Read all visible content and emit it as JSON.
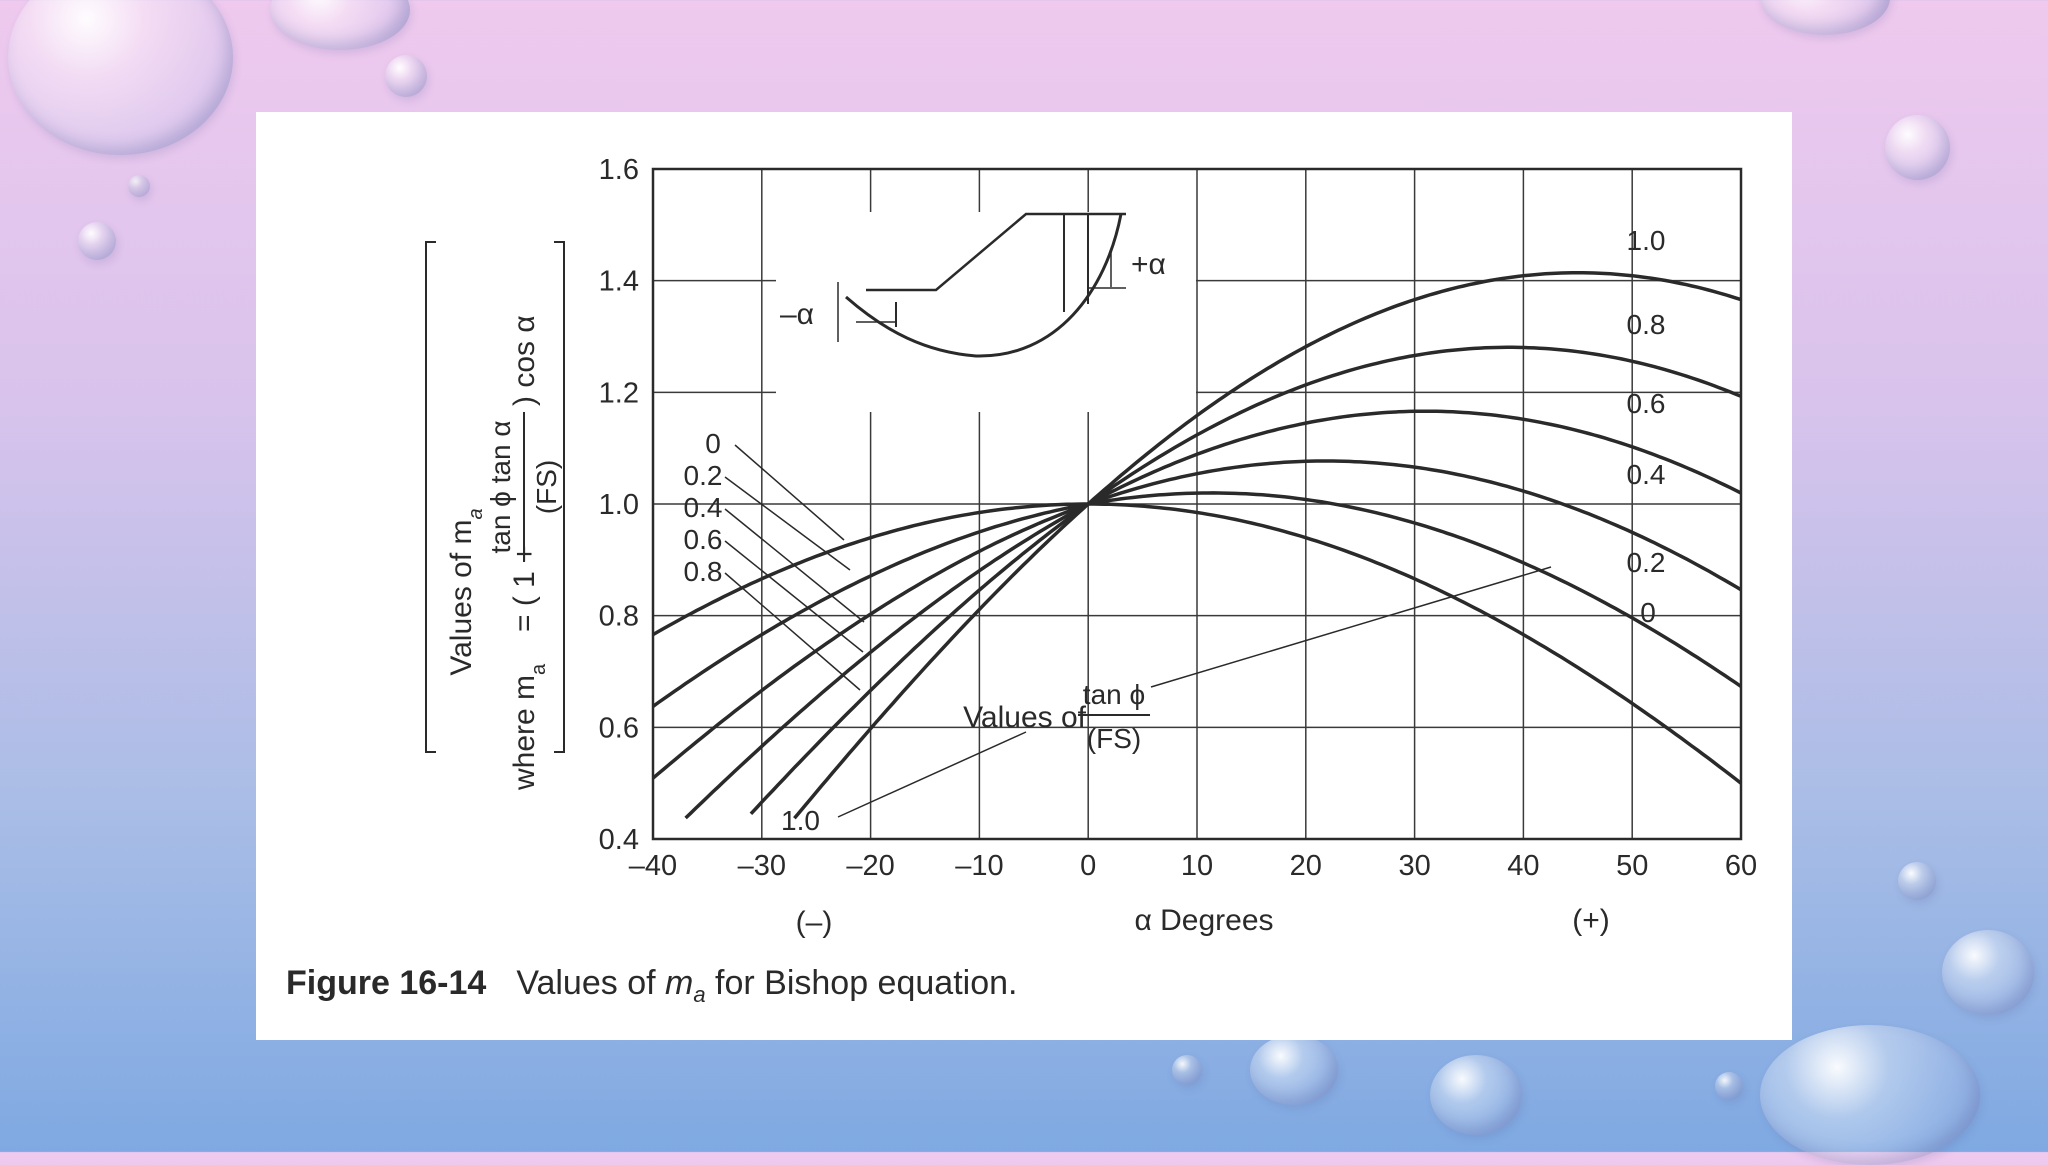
{
  "caption": {
    "figure": "Figure 16-14",
    "text_pre": "Values of ",
    "text_var": "m",
    "text_sub": "a",
    "text_post": " for Bishop equation."
  },
  "chart_data": {
    "type": "line",
    "xlabel": "α Degrees",
    "ylabel": "Values of m",
    "ylabel_sub": "a",
    "formula_where": "where m",
    "formula_sub": "a",
    "formula_eq": "= ( 1 +",
    "formula_num": "tan ϕ tan α",
    "formula_den": "(FS)",
    "formula_tail": ") cos α",
    "sign_neg": "(–)",
    "sign_pos": "(+)",
    "xlim": [
      -40,
      60
    ],
    "ylim": [
      0.4,
      1.6
    ],
    "xticks": [
      -40,
      -30,
      -20,
      -10,
      0,
      10,
      20,
      30,
      40,
      50,
      60
    ],
    "xtick_labels": [
      "–40",
      "–30",
      "–20",
      "–10",
      "0",
      "10",
      "20",
      "30",
      "40",
      "50",
      "60"
    ],
    "yticks": [
      0.4,
      0.6,
      0.8,
      1.0,
      1.2,
      1.4,
      1.6
    ],
    "ytick_labels": [
      "0.4",
      "0.6",
      "0.8",
      "1.0",
      "1.2",
      "1.4",
      "1.6"
    ],
    "grid": true,
    "annotation_values_of": "Values of",
    "annotation_num": "tan ϕ",
    "annotation_den": "(FS)",
    "inset_plus_alpha": "+α",
    "inset_minus_alpha": "–α",
    "series": [
      {
        "name": "0",
        "param": 0.0,
        "x_start": -40,
        "x_end": 60
      },
      {
        "name": "0.2",
        "param": 0.2,
        "x_start": -40,
        "x_end": 60
      },
      {
        "name": "0.4",
        "param": 0.4,
        "x_start": -40,
        "x_end": 60
      },
      {
        "name": "0.6",
        "param": 0.6,
        "x_start": -37,
        "x_end": 60
      },
      {
        "name": "0.8",
        "param": 0.8,
        "x_start": -31,
        "x_end": 60
      },
      {
        "name": "1.0",
        "param": 1.0,
        "x_start": -27,
        "x_end": 60
      }
    ],
    "right_labels": [
      "1.0",
      "0.8",
      "0.6",
      "0.4",
      "0.2",
      "0"
    ],
    "left_labels": [
      "0",
      "0.2",
      "0.4",
      "0.6",
      "0.8"
    ],
    "bottom_label": "1.0"
  }
}
